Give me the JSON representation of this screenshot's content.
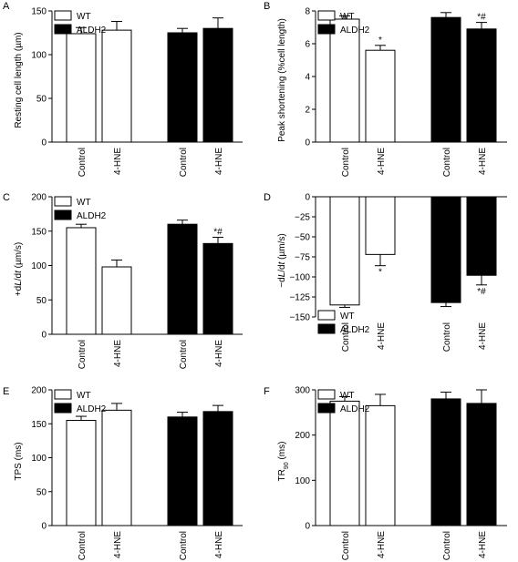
{
  "legend": {
    "wt": "WT",
    "aldh2": "ALDH2"
  },
  "chart_data": [
    {
      "panel": "A",
      "type": "bar",
      "categories": [
        "Control",
        "4-HNE",
        "Control",
        "4-HNE"
      ],
      "groups": [
        "WT",
        "WT",
        "ALDH2",
        "ALDH2"
      ],
      "values": [
        124,
        128,
        125,
        130
      ],
      "errors": [
        7,
        10,
        5,
        12
      ],
      "annotations": [
        "",
        "",
        "",
        ""
      ],
      "ylabel_parts": [
        {
          "t": "Resting cell length (µm)"
        }
      ],
      "ylim": [
        0,
        150
      ],
      "yticks": [
        0,
        50,
        100,
        150
      ],
      "legend_position": "top"
    },
    {
      "panel": "B",
      "type": "bar",
      "categories": [
        "Control",
        "4-HNE",
        "Control",
        "4-HNE"
      ],
      "groups": [
        "WT",
        "WT",
        "ALDH2",
        "ALDH2"
      ],
      "values": [
        7.5,
        5.6,
        7.6,
        6.9
      ],
      "errors": [
        0.2,
        0.3,
        0.3,
        0.4
      ],
      "annotations": [
        "",
        "*",
        "",
        "*#"
      ],
      "ylabel_parts": [
        {
          "t": "Peak shortening (%cell length)"
        }
      ],
      "ylim": [
        0,
        8
      ],
      "yticks": [
        0,
        2,
        4,
        6,
        8
      ],
      "legend_position": "top"
    },
    {
      "panel": "C",
      "type": "bar",
      "categories": [
        "Control",
        "4-HNE",
        "Control",
        "4-HNE"
      ],
      "groups": [
        "WT",
        "WT",
        "ALDH2",
        "ALDH2"
      ],
      "values": [
        155,
        98,
        160,
        132
      ],
      "errors": [
        5,
        10,
        6,
        9
      ],
      "annotations": [
        "",
        "",
        "",
        "*#"
      ],
      "ylabel_parts": [
        {
          "t": "+d"
        },
        {
          "t": "L",
          "i": true
        },
        {
          "t": "/d"
        },
        {
          "t": "t",
          "i": true
        },
        {
          "t": " (µm/s)"
        }
      ],
      "ylim": [
        0,
        200
      ],
      "yticks": [
        0,
        50,
        100,
        150,
        200
      ],
      "legend_position": "top"
    },
    {
      "panel": "D",
      "type": "bar",
      "categories": [
        "Control",
        "4-HNE",
        "Control",
        "4-HNE"
      ],
      "groups": [
        "WT",
        "WT",
        "ALDH2",
        "ALDH2"
      ],
      "values": [
        -135,
        -72,
        -132,
        -98
      ],
      "errors": [
        3,
        14,
        5,
        12
      ],
      "annotations": [
        "",
        "*",
        "",
        "*#"
      ],
      "ylabel_parts": [
        {
          "t": "−d"
        },
        {
          "t": "L",
          "i": true
        },
        {
          "t": "/d"
        },
        {
          "t": "t",
          "i": true
        },
        {
          "t": " (µm/s)"
        }
      ],
      "ylim": [
        -150,
        0
      ],
      "yticks": [
        0,
        -25,
        -50,
        -75,
        -100,
        -125,
        -150
      ],
      "legend_position": "bottom"
    },
    {
      "panel": "E",
      "type": "bar",
      "categories": [
        "Control",
        "4-HNE",
        "Control",
        "4-HNE"
      ],
      "groups": [
        "WT",
        "WT",
        "ALDH2",
        "ALDH2"
      ],
      "values": [
        155,
        170,
        160,
        168
      ],
      "errors": [
        6,
        10,
        7,
        9
      ],
      "annotations": [
        "",
        "",
        "",
        ""
      ],
      "ylabel_parts": [
        {
          "t": "TPS (ms)"
        }
      ],
      "ylim": [
        0,
        200
      ],
      "yticks": [
        0,
        50,
        100,
        150,
        200
      ],
      "legend_position": "top"
    },
    {
      "panel": "F",
      "type": "bar",
      "categories": [
        "Control",
        "4-HNE",
        "Control",
        "4-HNE"
      ],
      "groups": [
        "WT",
        "WT",
        "ALDH2",
        "ALDH2"
      ],
      "values": [
        275,
        265,
        280,
        270
      ],
      "errors": [
        10,
        25,
        15,
        30
      ],
      "annotations": [
        "",
        "",
        "",
        ""
      ],
      "ylabel_parts": [
        {
          "t": "TR"
        },
        {
          "t": "90",
          "sub": true
        },
        {
          "t": " (ms)"
        }
      ],
      "ylim": [
        0,
        300
      ],
      "yticks": [
        0,
        100,
        200,
        300
      ],
      "legend_position": "top"
    }
  ]
}
